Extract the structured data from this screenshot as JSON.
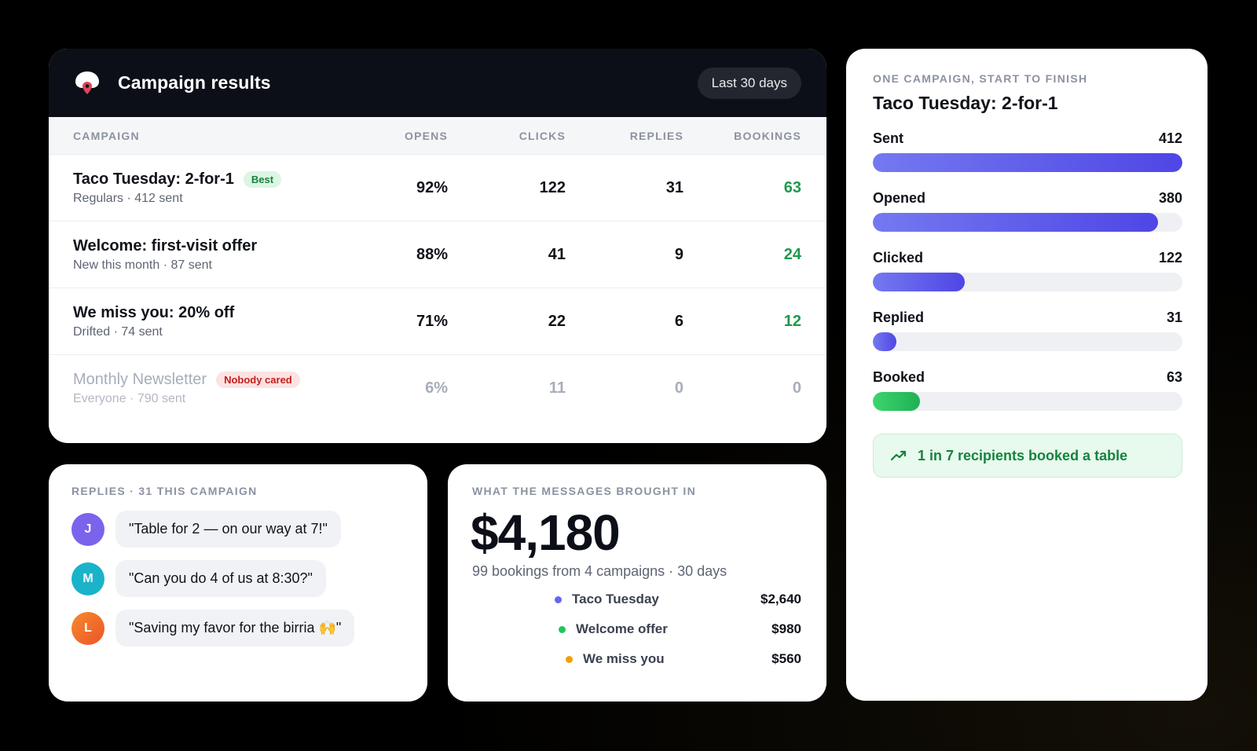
{
  "results": {
    "title": "Campaign results",
    "range": "Last 30 days",
    "columns": [
      "CAMPAIGN",
      "OPENS",
      "CLICKS",
      "REPLIES",
      "BOOKINGS"
    ],
    "rows": [
      {
        "name": "Taco Tuesday: 2-for-1",
        "badge": "Best",
        "sub": "Regulars · 412 sent",
        "opens": "92%",
        "clicks": "122",
        "replies": "31",
        "bookings": "63"
      },
      {
        "name": "Welcome: first-visit offer",
        "badge": "",
        "sub": "New this month · 87 sent",
        "opens": "88%",
        "clicks": "41",
        "replies": "9",
        "bookings": "24"
      },
      {
        "name": "We miss you: 20% off",
        "badge": "",
        "sub": "Drifted · 74 sent",
        "opens": "71%",
        "clicks": "22",
        "replies": "6",
        "bookings": "12"
      },
      {
        "name": "Monthly Newsletter",
        "badge": "Nobody cared",
        "sub": "Everyone · 790 sent",
        "opens": "6%",
        "clicks": "11",
        "replies": "0",
        "bookings": "0"
      }
    ]
  },
  "funnel": {
    "eyebrow": "ONE CAMPAIGN, START TO FINISH",
    "title": "Taco Tuesday: 2-for-1",
    "max": 412,
    "steps": [
      {
        "label": "Sent",
        "value": "412",
        "count": 412
      },
      {
        "label": "Opened",
        "value": "380",
        "count": 380
      },
      {
        "label": "Clicked",
        "value": "122",
        "count": 122
      },
      {
        "label": "Replied",
        "value": "31",
        "count": 31
      },
      {
        "label": "Booked",
        "value": "63",
        "count": 63
      }
    ],
    "insight": "1 in 7 recipients booked a table",
    "accent": "#4f46e5",
    "success": "#1fb153"
  },
  "replies": {
    "eyebrow": "REPLIES · 31 THIS CAMPAIGN",
    "items": [
      {
        "initial": "J",
        "text": "\"Table for 2 — on our way at 7!\"",
        "color": "#7b63ec"
      },
      {
        "initial": "M",
        "text": "\"Can you do 4 of us at 8:30?\"",
        "color": "#1ab3c9"
      },
      {
        "initial": "L",
        "text": "\"Saving my favor for the birria 🙌\"",
        "color": "#f2682a"
      }
    ]
  },
  "revenue": {
    "eyebrow": "WHAT THE MESSAGES BROUGHT IN",
    "total": "$4,180",
    "sub": "99 bookings from 4 campaigns · 30 days",
    "lines": [
      {
        "label": "Taco Tuesday",
        "value": "$2,640",
        "color": "#6366f1"
      },
      {
        "label": "Welcome offer",
        "value": "$980",
        "color": "#22c55e"
      },
      {
        "label": "We miss you",
        "value": "$560",
        "color": "#f59e0b"
      }
    ]
  }
}
